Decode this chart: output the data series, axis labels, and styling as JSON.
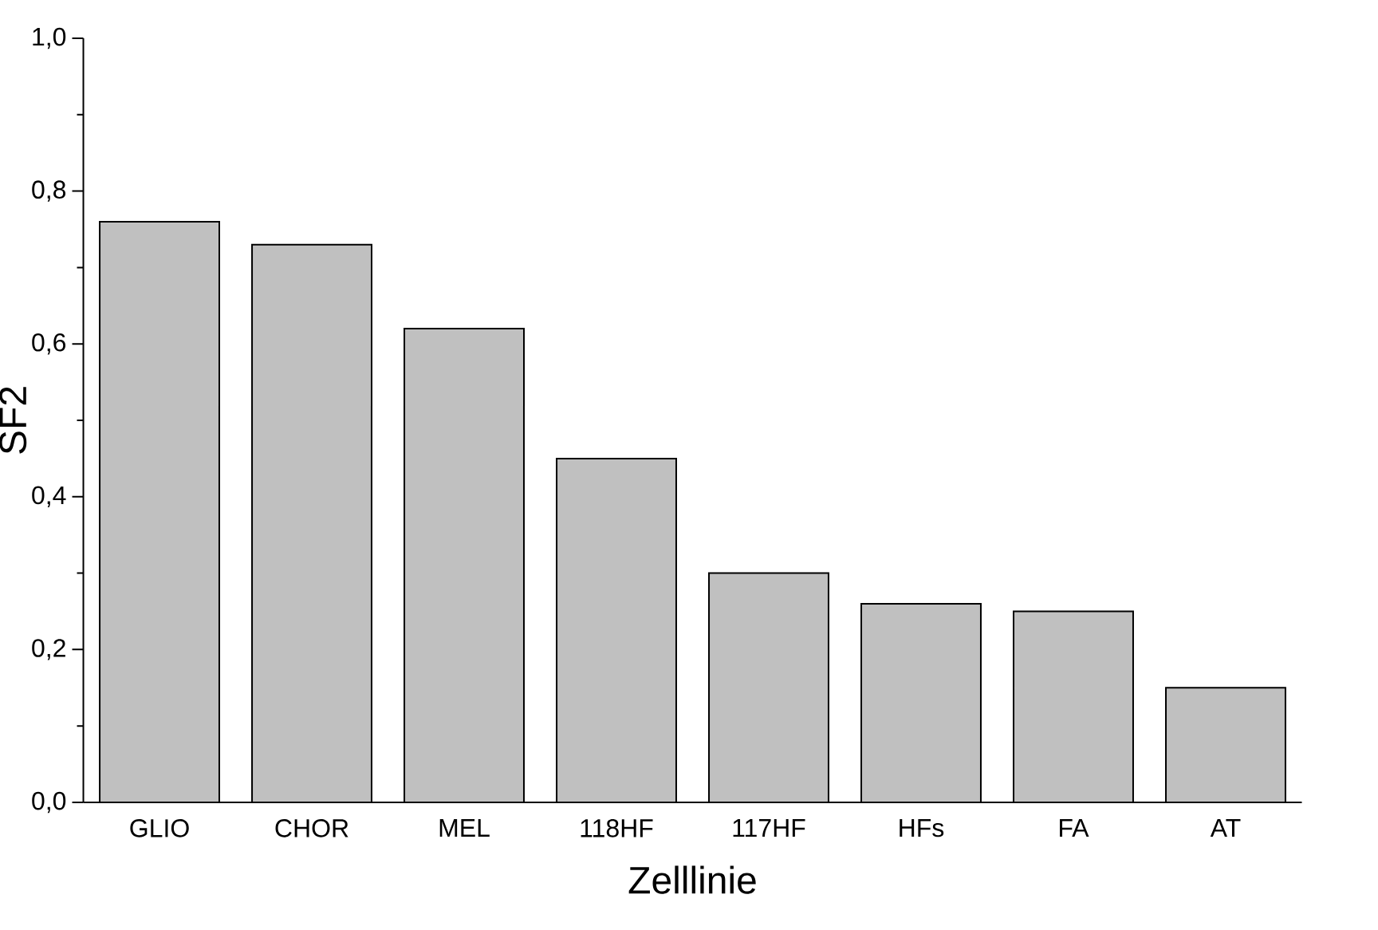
{
  "chart_data": {
    "type": "bar",
    "xlabel": "Zelllinie",
    "ylabel": "SF2",
    "categories": [
      "GLIO",
      "CHOR",
      "MEL",
      "118HF",
      "117HF",
      "HFs",
      "FA",
      "AT"
    ],
    "values": [
      0.76,
      0.73,
      0.62,
      0.45,
      0.3,
      0.26,
      0.25,
      0.15
    ],
    "color": "#c0c0c0",
    "ylim": [
      0,
      1
    ],
    "yticks": [
      {
        "value": 0,
        "label": "0,0"
      },
      {
        "value": 0.1,
        "label": null
      },
      {
        "value": 0.2,
        "label": "0,2"
      },
      {
        "value": 0.3,
        "label": null
      },
      {
        "value": 0.4,
        "label": "0,4"
      },
      {
        "value": 0.5,
        "label": null
      },
      {
        "value": 0.6,
        "label": "0,6"
      },
      {
        "value": 0.7,
        "label": null
      },
      {
        "value": 0.8,
        "label": "0,8"
      },
      {
        "value": 0.9,
        "label": null
      },
      {
        "value": 1,
        "label": "1,0"
      }
    ],
    "grid": false
  }
}
